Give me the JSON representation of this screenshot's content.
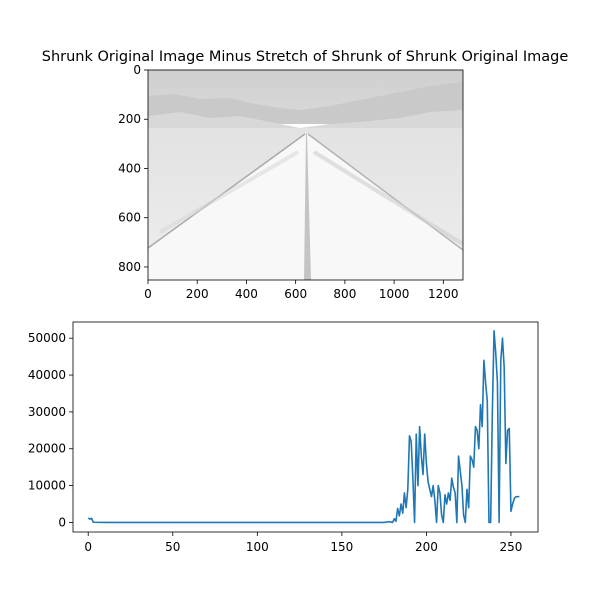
{
  "chart_data": [
    {
      "type": "image",
      "title": "Shrunk Original Image Minus Stretch of Shrunk of Shrunk Original Image",
      "xlim": [
        0,
        1280
      ],
      "ylim": [
        853,
        0
      ],
      "xticks": [
        0,
        200,
        400,
        600,
        800,
        1000,
        1200
      ],
      "yticks": [
        0,
        200,
        400,
        600,
        800
      ],
      "image_description_colors": {
        "sky": "#d2d2d2",
        "mountains": "#dcdcdc",
        "desert": "#e8e8e8",
        "road": "#f7f7f7",
        "road_edge": "#a8a8a8",
        "center_line": "#bdbdbd"
      }
    },
    {
      "type": "line",
      "xlim": [
        -9,
        266
      ],
      "ylim": [
        -2600,
        54400
      ],
      "xticks": [
        0,
        50,
        100,
        150,
        200,
        250
      ],
      "yticks": [
        0,
        10000,
        20000,
        30000,
        40000,
        50000
      ],
      "color": "#1f77b4",
      "series": [
        {
          "x": [
            0,
            1,
            2,
            3,
            10,
            50,
            100,
            150,
            175,
            178,
            180,
            181,
            182,
            183,
            184,
            185,
            186,
            187,
            188,
            189,
            190,
            191,
            192,
            193,
            194,
            195,
            196,
            197,
            198,
            199,
            200,
            201,
            202,
            203,
            204,
            205,
            206,
            207,
            208,
            209,
            210,
            211,
            212,
            213,
            214,
            215,
            216,
            217,
            218,
            219,
            220,
            221,
            222,
            223,
            224,
            225,
            226,
            227,
            228,
            229,
            230,
            231,
            232,
            233,
            234,
            235,
            236,
            237,
            238,
            239,
            240,
            241,
            242,
            243,
            244,
            245,
            246,
            247,
            248,
            249,
            250,
            251,
            252,
            253,
            254,
            255
          ],
          "y": [
            1200,
            900,
            1100,
            50,
            0,
            0,
            0,
            0,
            0,
            200,
            0,
            1000,
            300,
            3800,
            1800,
            5000,
            2500,
            8000,
            4000,
            9000,
            23500,
            22000,
            12000,
            0,
            24000,
            10000,
            26000,
            18000,
            13000,
            24000,
            16000,
            11000,
            9000,
            7000,
            10000,
            6000,
            0,
            10000,
            8000,
            2000,
            0,
            7500,
            5000,
            8000,
            6000,
            12000,
            9500,
            8000,
            0,
            18000,
            14000,
            10000,
            2000,
            0,
            9000,
            4000,
            18000,
            17000,
            15000,
            26000,
            25000,
            20000,
            32000,
            26000,
            44000,
            38000,
            33000,
            0,
            0,
            30000,
            52000,
            46000,
            38000,
            0,
            44000,
            50000,
            42000,
            16000,
            25000,
            25500,
            3000,
            5000,
            6500,
            7000,
            7000,
            7000
          ]
        }
      ]
    }
  ]
}
